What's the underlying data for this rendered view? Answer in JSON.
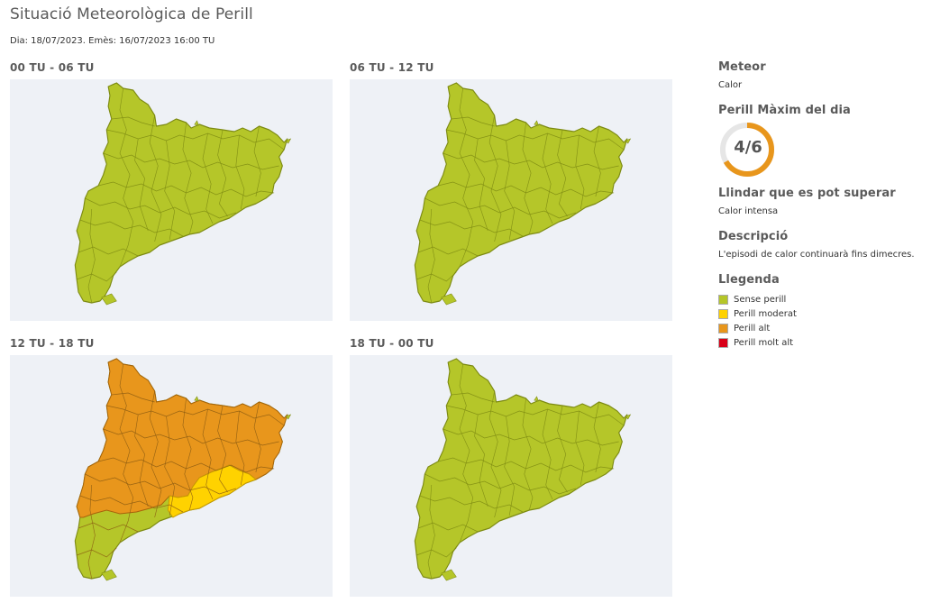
{
  "header": {
    "title": "Situació Meteorològica de Perill",
    "meta": "Dia: 18/07/2023. Emès: 16/07/2023 16:00 TU"
  },
  "colors": {
    "none": "#b5c629",
    "moderate": "#ffd200",
    "high": "#e8961c",
    "very_high": "#d90018",
    "gauge": "#e8961c",
    "map_bg": "#eef1f6"
  },
  "panels": [
    {
      "label": "00 TU - 06 TU",
      "level": "none"
    },
    {
      "label": "06 TU - 12 TU",
      "level": "none"
    },
    {
      "label": "12 TU - 18 TU",
      "level": "mixed"
    },
    {
      "label": "18 TU - 00 TU",
      "level": "none"
    }
  ],
  "sidebar": {
    "meteor_heading": "Meteor",
    "meteor_value": "Calor",
    "max_heading": "Perill Màxim del dia",
    "max_level_text": "4/6",
    "max_level_fraction": 0.667,
    "threshold_heading": "Llindar que es pot superar",
    "threshold_value": "Calor intensa",
    "desc_heading": "Descripció",
    "desc_value": "L'episodi de calor continuarà fins dimecres.",
    "legend_heading": "Llegenda",
    "legend": [
      {
        "label": "Sense perill",
        "color": "#b5c629"
      },
      {
        "label": "Perill moderat",
        "color": "#ffd200"
      },
      {
        "label": "Perill alt",
        "color": "#e8961c"
      },
      {
        "label": "Perill molt alt",
        "color": "#d90018"
      }
    ]
  }
}
